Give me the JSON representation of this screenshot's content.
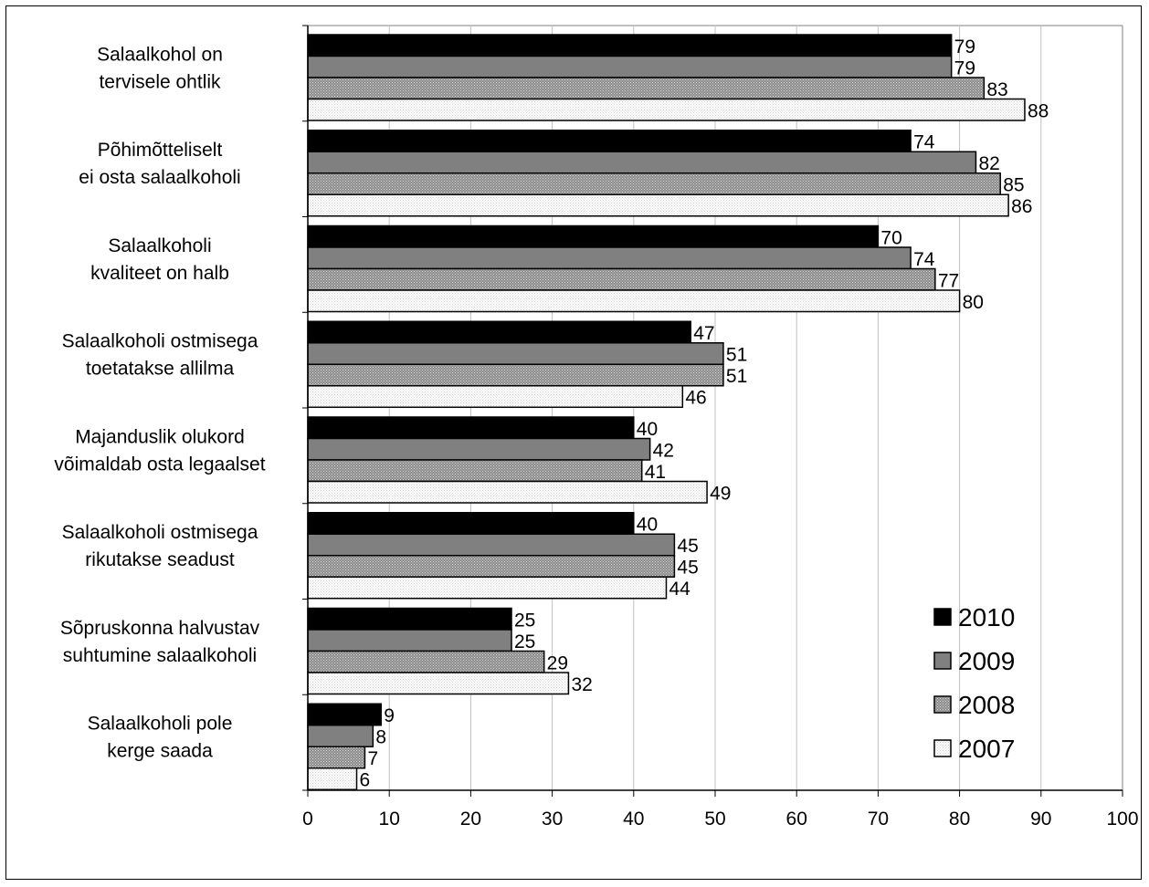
{
  "chart_data": {
    "type": "bar",
    "orientation": "horizontal",
    "categories": [
      [
        "Salaalkohol on",
        "tervisele ohtlik"
      ],
      [
        "Põhimõtteliselt",
        "ei osta salaalkoholi"
      ],
      [
        "Salaalkoholi",
        "kvaliteet on halb"
      ],
      [
        "Salaalkoholi ostmisega",
        "toetatakse allilma"
      ],
      [
        "Majanduslik olukord",
        "võimaldab osta legaalset"
      ],
      [
        "Salaalkoholi ostmisega",
        "rikutakse seadust"
      ],
      [
        "Sõpruskonna halvustav",
        "suhtumine salaalkoholi"
      ],
      [
        "Salaalkoholi pole",
        "kerge saada"
      ]
    ],
    "series": [
      {
        "name": "2010",
        "color": "#000000",
        "pattern": "solid",
        "values": [
          79,
          74,
          70,
          47,
          40,
          40,
          25,
          9
        ]
      },
      {
        "name": "2009",
        "color": "#808080",
        "pattern": "solid",
        "values": [
          79,
          82,
          74,
          51,
          42,
          45,
          25,
          8
        ]
      },
      {
        "name": "2008",
        "color": "#a0a0a0",
        "pattern": "dotted-dark",
        "values": [
          83,
          85,
          77,
          51,
          41,
          45,
          29,
          7
        ]
      },
      {
        "name": "2007",
        "color": "#ffffff",
        "pattern": "dotted-light",
        "values": [
          88,
          86,
          80,
          46,
          49,
          44,
          32,
          6
        ]
      }
    ],
    "x_ticks": [
      "0",
      "10",
      "20",
      "30",
      "40",
      "50",
      "60",
      "70",
      "80",
      "90",
      "100"
    ],
    "xlim": [
      0,
      100
    ],
    "grid": true,
    "legend_position": "bottom-right"
  }
}
